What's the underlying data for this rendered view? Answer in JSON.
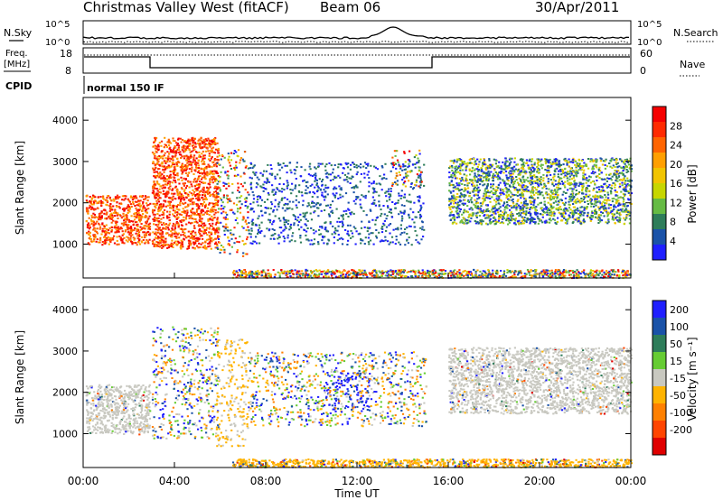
{
  "header": {
    "title": "Christmas Valley West (fitACF)",
    "beam": "Beam 06",
    "date": "30/Apr/2011"
  },
  "status_panels": {
    "nsky_label": "N.Sky",
    "nsearch_label": "N.Search",
    "noise_ticks": [
      "10^5",
      "10^0"
    ],
    "freq_label_line1": "Freq.",
    "freq_label_line2": "[MHz]",
    "freq_ticks": [
      "18",
      "8"
    ],
    "nave_label": "Nave",
    "nave_ticks": [
      "60",
      "0"
    ],
    "cpid_label": "CPID",
    "cpid_value": "normal 150 IF"
  },
  "chart_data": [
    {
      "type": "heatmap",
      "name": "power-panel",
      "ylabel": "Slant Range [km]",
      "xlabel": "",
      "xlim": [
        0,
        24
      ],
      "ylim": [
        180,
        4550
      ],
      "yticks": [
        1000,
        2000,
        3000,
        4000
      ],
      "colorbar": {
        "label": "Power [dB]",
        "ticks": [
          "4",
          "8",
          "12",
          "16",
          "20",
          "24",
          "28"
        ],
        "colors": [
          "#1f1fff",
          "#1a52a8",
          "#2e7d5a",
          "#66bb44",
          "#c7d600",
          "#f1c400",
          "#ff9f00",
          "#ff6400",
          "#ff2a00",
          "#f50000"
        ]
      },
      "echo_regions": [
        {
          "t0": 0.1,
          "t1": 2.9,
          "r0": 1000,
          "r1": 2200,
          "level": "high"
        },
        {
          "t0": 3.0,
          "t1": 5.9,
          "r0": 900,
          "r1": 3600,
          "level": "high"
        },
        {
          "t0": 5.8,
          "t1": 7.2,
          "r0": 700,
          "r1": 3300,
          "level": "mixed"
        },
        {
          "t0": 7.2,
          "t1": 14.9,
          "r0": 1000,
          "r1": 3000,
          "level": "low"
        },
        {
          "t0": 13.5,
          "t1": 14.8,
          "r0": 2400,
          "r1": 3300,
          "level": "mixed"
        },
        {
          "t0": 16.0,
          "t1": 24.0,
          "r0": 1500,
          "r1": 3100,
          "level": "band"
        },
        {
          "t0": 6.5,
          "t1": 24.0,
          "r0": 200,
          "r1": 400,
          "level": "ground"
        }
      ]
    },
    {
      "type": "heatmap",
      "name": "velocity-panel",
      "ylabel": "Slant Range [km]",
      "xlabel": "Time UT",
      "xlim": [
        0,
        24
      ],
      "ylim": [
        180,
        4550
      ],
      "yticks": [
        1000,
        2000,
        3000,
        4000
      ],
      "xticks": [
        "00:00",
        "04:00",
        "08:00",
        "12:00",
        "16:00",
        "20:00",
        "00:00"
      ],
      "colorbar": {
        "label": "Velocity [m s⁻¹]",
        "ticks": [
          "200",
          "100",
          "50",
          "15",
          "-15",
          "-50",
          "-100",
          "-200"
        ],
        "colors": [
          "#1f1fff",
          "#1a52a8",
          "#2e7d5a",
          "#66cc33",
          "#c8c8c0",
          "#ffb300",
          "#ff8000",
          "#ff4500",
          "#e00000"
        ]
      },
      "echo_regions": [
        {
          "t0": 0.1,
          "t1": 2.9,
          "r0": 1000,
          "r1": 2200,
          "level": "gray"
        },
        {
          "t0": 3.0,
          "t1": 5.9,
          "r0": 900,
          "r1": 3600,
          "level": "mixed"
        },
        {
          "t0": 5.8,
          "t1": 7.2,
          "r0": 700,
          "r1": 3300,
          "level": "orange"
        },
        {
          "t0": 10.5,
          "t1": 12.5,
          "r0": 1500,
          "r1": 2500,
          "level": "blue"
        },
        {
          "t0": 7.2,
          "t1": 15.0,
          "r0": 1200,
          "r1": 3000,
          "level": "mixed"
        },
        {
          "t0": 16.0,
          "t1": 24.0,
          "r0": 1500,
          "r1": 3100,
          "level": "gray"
        },
        {
          "t0": 6.5,
          "t1": 24.0,
          "r0": 200,
          "r1": 400,
          "level": "ground"
        }
      ]
    }
  ]
}
